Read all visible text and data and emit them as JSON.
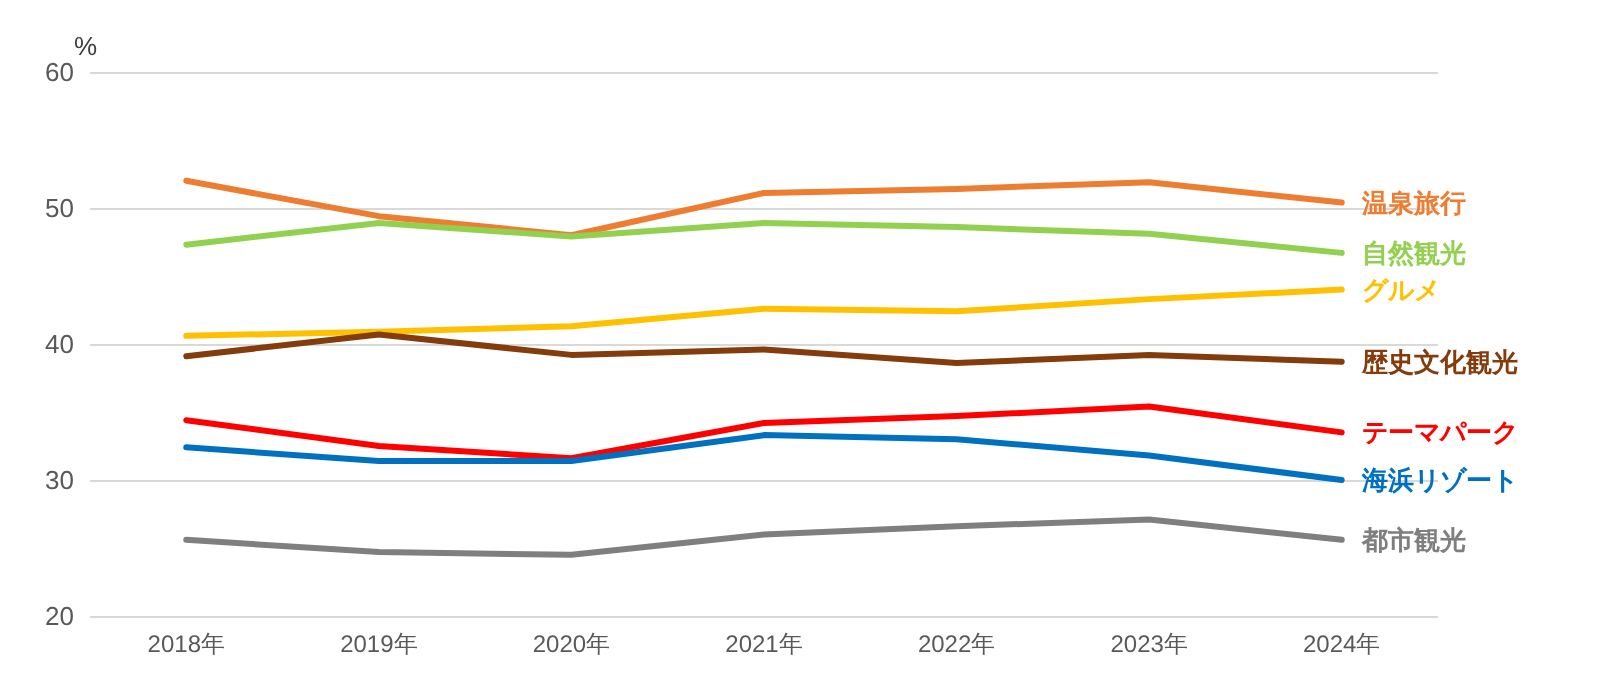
{
  "chart_data": {
    "type": "line",
    "ylabel": "%",
    "categories": [
      "2018年",
      "2019年",
      "2020年",
      "2021年",
      "2022年",
      "2023年",
      "2024年"
    ],
    "series": [
      {
        "name": "温泉旅行",
        "color": "#ed7d31",
        "values": [
          52.0,
          49.4,
          48.0,
          51.1,
          51.4,
          51.9,
          50.4
        ]
      },
      {
        "name": "自然観光",
        "color": "#92d050",
        "values": [
          47.3,
          48.9,
          47.9,
          48.9,
          48.6,
          48.1,
          46.7
        ]
      },
      {
        "name": "グルメ",
        "color": "#ffc000",
        "values": [
          40.6,
          40.9,
          41.3,
          42.6,
          42.4,
          43.3,
          44.0
        ]
      },
      {
        "name": "歴史文化観光",
        "color": "#843c0c",
        "values": [
          39.1,
          40.7,
          39.2,
          39.6,
          38.6,
          39.2,
          38.7
        ]
      },
      {
        "name": "テーマパーク",
        "color": "#ff0000",
        "values": [
          34.4,
          32.5,
          31.6,
          34.2,
          34.7,
          35.4,
          33.5
        ]
      },
      {
        "name": "海浜リゾート",
        "color": "#0070c0",
        "values": [
          32.4,
          31.4,
          31.4,
          33.3,
          33.0,
          31.8,
          30.0
        ]
      },
      {
        "name": "都市観光",
        "color": "#7f7f7f",
        "values": [
          25.6,
          24.7,
          24.5,
          26.0,
          26.6,
          27.1,
          25.6
        ]
      }
    ],
    "ylim": [
      20,
      60
    ],
    "yticks": [
      20,
      30,
      40,
      50,
      60
    ],
    "grid": "y",
    "legend": false,
    "marker": "none",
    "line_style": "solid"
  }
}
